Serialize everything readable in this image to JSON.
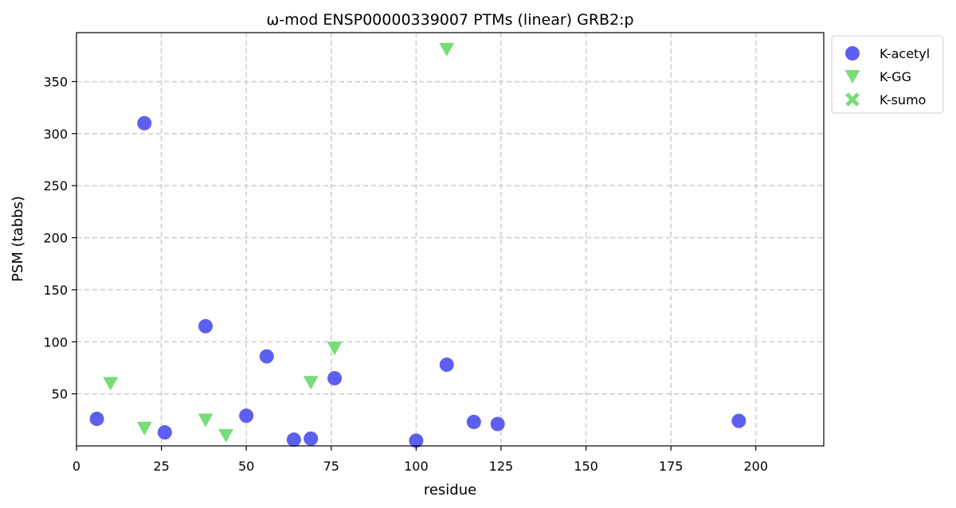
{
  "chart_data": {
    "type": "scatter",
    "title": "ω-mod ENSP00000339007 PTMs (linear) GRB2:p",
    "xlabel": "residue",
    "ylabel": "PSM (tabbs)",
    "xlim": [
      0,
      220
    ],
    "ylim": [
      0,
      397
    ],
    "xticks": [
      0,
      25,
      50,
      75,
      100,
      125,
      150,
      175,
      200
    ],
    "yticks": [
      50,
      100,
      150,
      200,
      250,
      300,
      350
    ],
    "grid": true,
    "legend_position": "outside-top-right",
    "series": [
      {
        "name": "K-acetyl",
        "marker": "circle",
        "color": "#5555ee",
        "points": [
          {
            "x": 6,
            "y": 26
          },
          {
            "x": 20,
            "y": 310
          },
          {
            "x": 26,
            "y": 13
          },
          {
            "x": 38,
            "y": 115
          },
          {
            "x": 50,
            "y": 29
          },
          {
            "x": 56,
            "y": 86
          },
          {
            "x": 64,
            "y": 6
          },
          {
            "x": 69,
            "y": 7
          },
          {
            "x": 76,
            "y": 65
          },
          {
            "x": 100,
            "y": 5
          },
          {
            "x": 109,
            "y": 78
          },
          {
            "x": 117,
            "y": 23
          },
          {
            "x": 124,
            "y": 21
          },
          {
            "x": 195,
            "y": 24
          }
        ]
      },
      {
        "name": "K-GG",
        "marker": "triangle-down",
        "color": "#77dd77",
        "points": [
          {
            "x": 10,
            "y": 60
          },
          {
            "x": 20,
            "y": 17
          },
          {
            "x": 38,
            "y": 25
          },
          {
            "x": 44,
            "y": 10
          },
          {
            "x": 69,
            "y": 61
          },
          {
            "x": 76,
            "y": 94
          },
          {
            "x": 109,
            "y": 381
          }
        ]
      },
      {
        "name": "K-sumo",
        "marker": "x",
        "color": "#77dd77",
        "points": []
      }
    ]
  }
}
